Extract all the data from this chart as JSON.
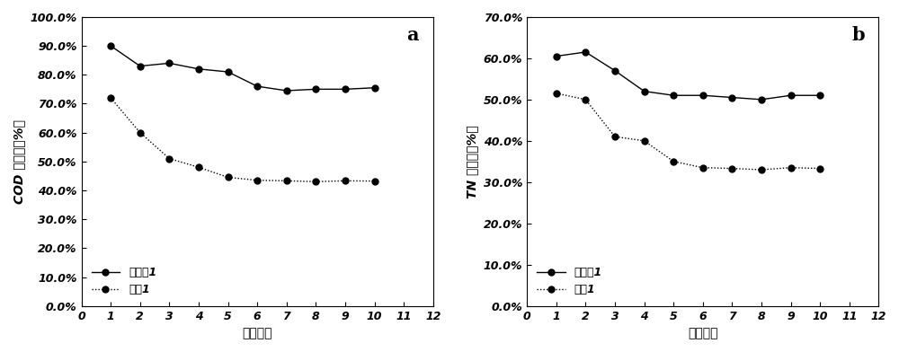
{
  "x": [
    1,
    2,
    3,
    4,
    5,
    6,
    7,
    8,
    9,
    10
  ],
  "chart_a": {
    "series1": [
      0.9,
      0.83,
      0.84,
      0.82,
      0.81,
      0.76,
      0.745,
      0.75,
      0.75,
      0.755
    ],
    "series2": [
      0.72,
      0.6,
      0.51,
      0.48,
      0.445,
      0.435,
      0.433,
      0.43,
      0.433,
      0.432
    ],
    "ylabel": "COD 去除率（%）",
    "label": "a",
    "ylim": [
      0.0,
      1.0
    ],
    "yticks": [
      0.0,
      0.1,
      0.2,
      0.3,
      0.4,
      0.5,
      0.6,
      0.7,
      0.8,
      0.9,
      1.0
    ]
  },
  "chart_b": {
    "series1": [
      0.605,
      0.615,
      0.57,
      0.52,
      0.51,
      0.51,
      0.505,
      0.5,
      0.51,
      0.51
    ],
    "series2": [
      0.515,
      0.5,
      0.41,
      0.4,
      0.35,
      0.335,
      0.333,
      0.33,
      0.335,
      0.333
    ],
    "ylabel": "TN 去除率（%）",
    "label": "b",
    "ylim": [
      0.0,
      0.7
    ],
    "yticks": [
      0.0,
      0.1,
      0.2,
      0.3,
      0.4,
      0.5,
      0.6,
      0.7
    ]
  },
  "legend_series1": "实施例1",
  "legend_series2": "对比1",
  "xlabel": "电解次数",
  "xlim": [
    0,
    12
  ],
  "xticks": [
    0,
    1,
    2,
    3,
    4,
    5,
    6,
    7,
    8,
    9,
    10,
    11,
    12
  ],
  "line_color": "#000000",
  "marker": "o",
  "marker_size": 5,
  "bg_color": "#ffffff",
  "font_size": 10,
  "tick_font_size": 9
}
